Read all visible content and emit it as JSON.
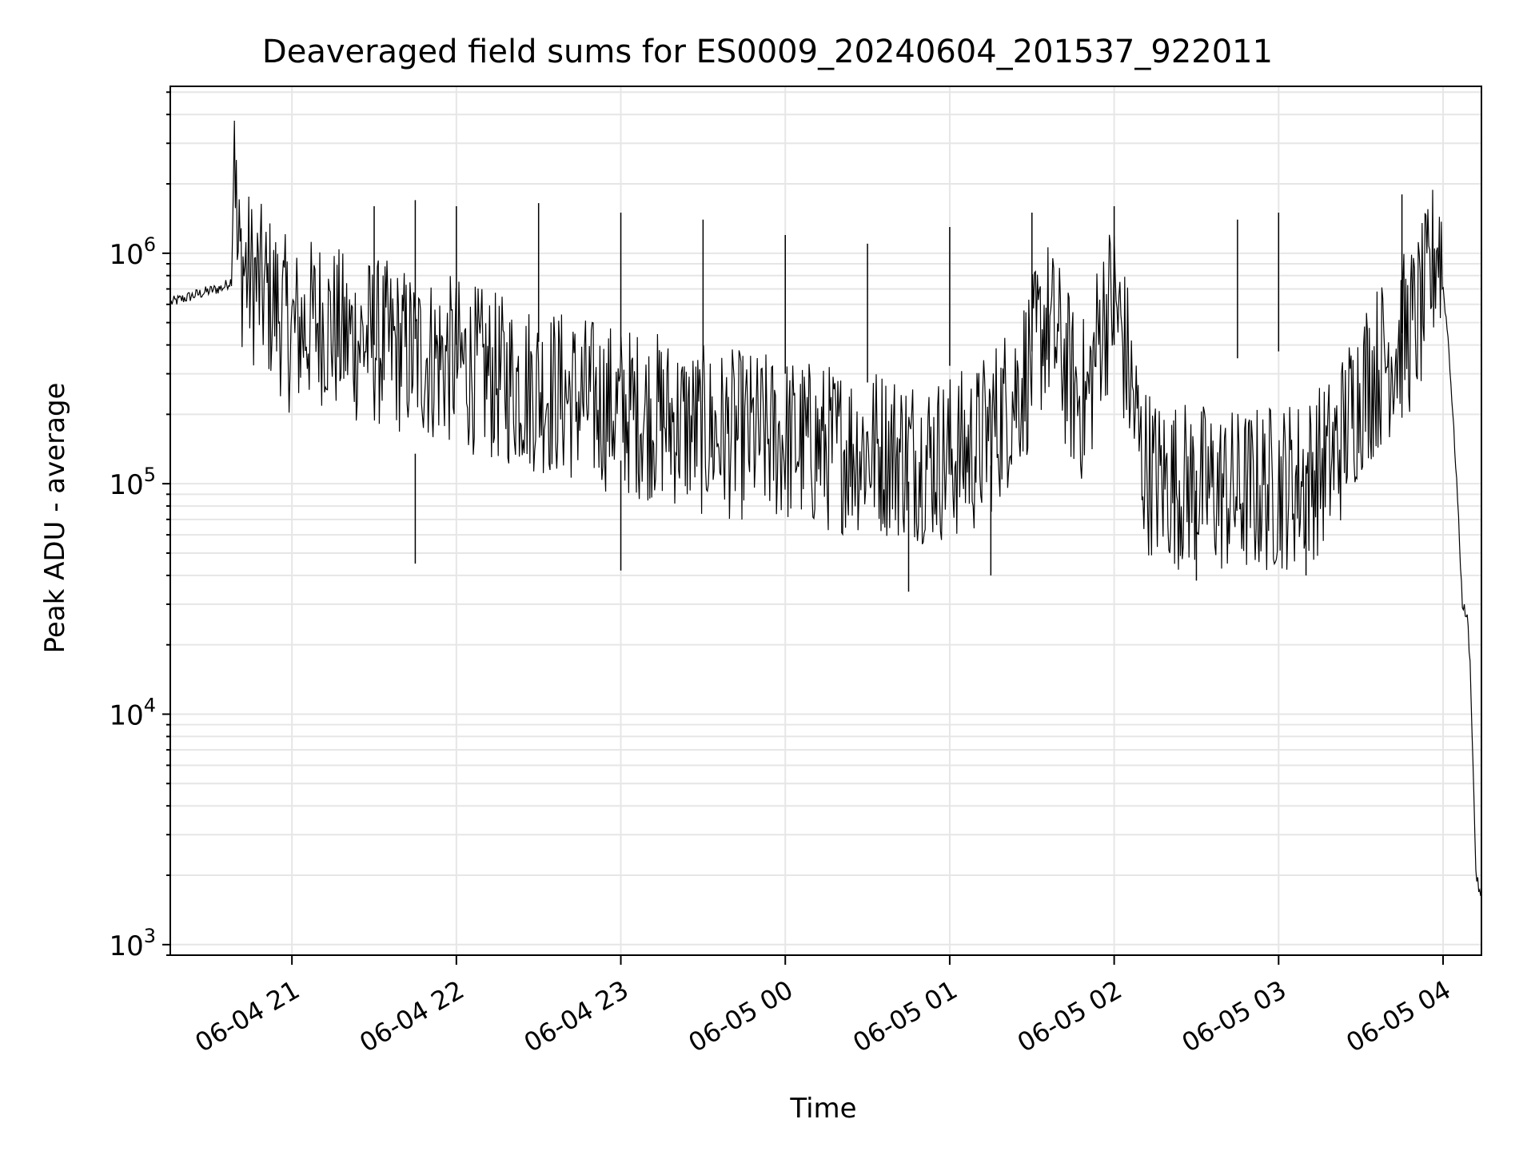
{
  "chart_data": {
    "type": "line",
    "title": "Deaveraged field sums for ES0009_20240604_201537_922011",
    "xlabel": "Time",
    "ylabel": "Peak ADU - average",
    "yscale": "log",
    "xlim": [
      "2024-06-04T20:15:37",
      "2024-06-05T04:14:00"
    ],
    "ylim": [
      900,
      5300000
    ],
    "grid": true,
    "x_ticks": [
      {
        "at": "2024-06-04T21:00",
        "label": "06-04 21"
      },
      {
        "at": "2024-06-04T22:00",
        "label": "06-04 22"
      },
      {
        "at": "2024-06-04T23:00",
        "label": "06-04 23"
      },
      {
        "at": "2024-06-05T00:00",
        "label": "06-05 00"
      },
      {
        "at": "2024-06-05T01:00",
        "label": "06-05 01"
      },
      {
        "at": "2024-06-05T02:00",
        "label": "06-05 02"
      },
      {
        "at": "2024-06-05T03:00",
        "label": "06-05 03"
      },
      {
        "at": "2024-06-05T04:00",
        "label": "06-05 04"
      }
    ],
    "y_ticks": [
      {
        "value": 1000,
        "base": "10",
        "exp": "3"
      },
      {
        "value": 10000,
        "base": "10",
        "exp": "4"
      },
      {
        "value": 100000,
        "base": "10",
        "exp": "5"
      },
      {
        "value": 1000000,
        "base": "10",
        "exp": "6"
      }
    ],
    "series": [
      {
        "color": "#000000",
        "x": [
          "2024-06-04T20:15:37",
          "2024-06-04T20:25",
          "2024-06-04T20:35",
          "2024-06-04T20:38",
          "2024-06-04T20:39",
          "2024-06-04T20:40",
          "2024-06-04T20:45",
          "2024-06-04T20:55",
          "2024-06-04T21:00",
          "2024-06-04T21:10",
          "2024-06-04T21:20",
          "2024-06-04T21:30",
          "2024-06-04T21:45",
          "2024-06-04T22:00",
          "2024-06-04T22:15",
          "2024-06-04T22:30",
          "2024-06-04T22:45",
          "2024-06-04T23:00",
          "2024-06-04T23:15",
          "2024-06-04T23:30",
          "2024-06-04T23:45",
          "2024-06-05T00:00",
          "2024-06-05T00:15",
          "2024-06-05T00:30",
          "2024-06-05T00:40",
          "2024-06-05T00:50",
          "2024-06-05T01:00",
          "2024-06-05T01:10",
          "2024-06-05T01:20",
          "2024-06-05T01:30",
          "2024-06-05T01:35",
          "2024-06-05T01:40",
          "2024-06-05T01:45",
          "2024-06-05T01:50",
          "2024-06-05T01:55",
          "2024-06-05T02:00",
          "2024-06-05T02:05",
          "2024-06-05T02:10",
          "2024-06-05T02:15",
          "2024-06-05T02:30",
          "2024-06-05T02:45",
          "2024-06-05T03:00",
          "2024-06-05T03:10",
          "2024-06-05T03:20",
          "2024-06-05T03:30",
          "2024-06-05T03:40",
          "2024-06-05T03:50",
          "2024-06-05T03:55",
          "2024-06-05T03:58",
          "2024-06-05T04:00",
          "2024-06-05T04:02",
          "2024-06-05T04:05",
          "2024-06-05T04:07",
          "2024-06-05T04:09",
          "2024-06-05T04:10",
          "2024-06-05T04:12",
          "2024-06-05T04:14"
        ],
        "y": [
          600000,
          650000,
          700000,
          750000,
          3400000,
          750000,
          600000,
          450000,
          350000,
          400000,
          330000,
          320000,
          280000,
          260000,
          220000,
          200000,
          180000,
          160000,
          150000,
          130000,
          125000,
          120000,
          110000,
          110000,
          105000,
          100000,
          100000,
          110000,
          160000,
          260000,
          400000,
          300000,
          200000,
          170000,
          380000,
          500000,
          250000,
          100000,
          80000,
          75000,
          70000,
          75000,
          80000,
          100000,
          200000,
          280000,
          380000,
          550000,
          900000,
          700000,
          400000,
          100000,
          30000,
          25000,
          15000,
          2000,
          1500
        ],
        "spikes": [
          {
            "x": "2024-06-04T21:30",
            "y": 1600000
          },
          {
            "x": "2024-06-04T21:45",
            "y": 1700000
          },
          {
            "x": "2024-06-04T22:00",
            "y": 1600000
          },
          {
            "x": "2024-06-04T22:30",
            "y": 1650000
          },
          {
            "x": "2024-06-04T23:00",
            "y": 1500000
          },
          {
            "x": "2024-06-04T23:30",
            "y": 1400000
          },
          {
            "x": "2024-06-05T00:00",
            "y": 1200000
          },
          {
            "x": "2024-06-05T00:30",
            "y": 1100000
          },
          {
            "x": "2024-06-05T01:00",
            "y": 1300000
          },
          {
            "x": "2024-06-05T01:30",
            "y": 1500000
          },
          {
            "x": "2024-06-05T02:00",
            "y": 1600000
          },
          {
            "x": "2024-06-05T02:45",
            "y": 1400000
          },
          {
            "x": "2024-06-05T03:00",
            "y": 1500000
          },
          {
            "x": "2024-06-05T03:45",
            "y": 1800000
          }
        ],
        "dips": [
          {
            "x": "2024-06-04T21:45",
            "y": 45000
          },
          {
            "x": "2024-06-04T23:00",
            "y": 42000
          },
          {
            "x": "2024-06-05T00:45",
            "y": 34000
          },
          {
            "x": "2024-06-05T01:15",
            "y": 40000
          },
          {
            "x": "2024-06-05T02:30",
            "y": 38000
          },
          {
            "x": "2024-06-05T03:10",
            "y": 40000
          }
        ]
      }
    ]
  }
}
